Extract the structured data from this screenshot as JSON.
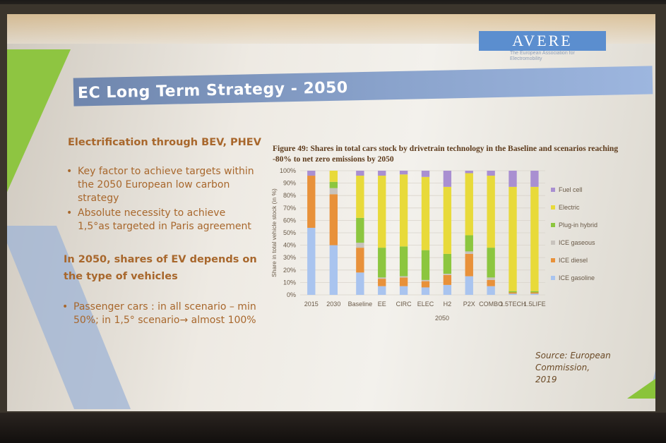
{
  "slide": {
    "logo_text": "AVERE",
    "logo_subtitle": "The European Association for Electromobility",
    "title": "EC Long Term Strategy - 2050",
    "section1_heading": "Electrification through BEV, PHEV",
    "section1_bullets": [
      "Key factor to achieve targets within the 2050 European low carbon strategy",
      "Absolute necessity to achieve 1,5°as targeted in Paris agreement"
    ],
    "section2_heading_line1": "In 2050, shares of EV depends on",
    "section2_heading_line2": "the type of vehicles",
    "section2_bullets": [
      "Passenger cars : in all scenario – min 50%; in 1,5° scenario→ almost 100%"
    ],
    "figure_caption": "Figure 49: Shares in total cars stock by drivetrain technology in the Baseline and scenarios reaching -80% to net zero emissions by 2050",
    "source_line1": "Source: European",
    "source_line2": "Commission,",
    "source_line3": "2019",
    "group_label_2050": "2050"
  },
  "chart_data": {
    "type": "bar",
    "stacked": true,
    "categories": [
      "2015",
      "2030",
      "Baseline",
      "EE",
      "CIRC",
      "ELEC",
      "H2",
      "P2X",
      "COMBO",
      "1.5TECH",
      "1.5LIFE"
    ],
    "ylabel": "Share in total vehicle stock (in %)",
    "xlabel": "",
    "ylim": [
      0,
      100
    ],
    "yticks": [
      "0%",
      "10%",
      "20%",
      "30%",
      "40%",
      "50%",
      "60%",
      "70%",
      "80%",
      "90%",
      "100%"
    ],
    "grid": true,
    "legend_position": "right",
    "series": [
      {
        "name": "ICE gasoline",
        "color": "#a9c4ef",
        "values": [
          54,
          40,
          18,
          7,
          7,
          6,
          8,
          15,
          7,
          1,
          1
        ]
      },
      {
        "name": "ICE diesel",
        "color": "#e8913a",
        "values": [
          42,
          41,
          20,
          6,
          7,
          5,
          8,
          18,
          5,
          1,
          1
        ]
      },
      {
        "name": "ICE gaseous",
        "color": "#c8c3bd",
        "values": [
          0,
          5,
          4,
          1,
          1,
          1,
          1,
          2,
          2,
          0,
          0
        ]
      },
      {
        "name": "Plug-in hybrid",
        "color": "#8cc63f",
        "values": [
          0,
          5,
          20,
          24,
          24,
          24,
          16,
          13,
          24,
          1,
          1
        ]
      },
      {
        "name": "Electric",
        "color": "#e8da3a",
        "values": [
          0,
          9,
          34,
          58,
          58,
          59,
          54,
          50,
          58,
          84,
          84
        ]
      },
      {
        "name": "Fuel cell",
        "color": "#a98fd1",
        "values": [
          4,
          0,
          4,
          4,
          3,
          5,
          13,
          2,
          4,
          13,
          13
        ]
      }
    ]
  },
  "colors": {
    "heading_text": "#a8672c",
    "title_bar": "#7f97c0",
    "accent_green": "#8ac43a"
  }
}
